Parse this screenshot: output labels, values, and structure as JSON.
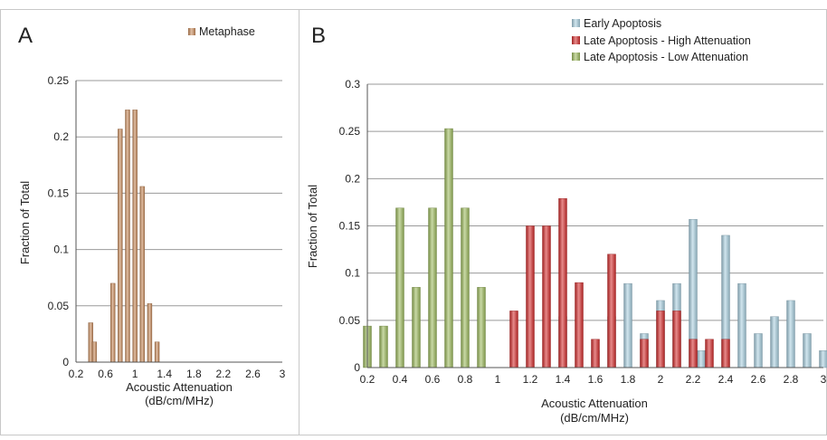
{
  "chart_data": [
    {
      "type": "bar",
      "panel_label": "A",
      "xlabel_line1": "Acoustic Attenuation",
      "xlabel_line2": "(dB/cm/MHz)",
      "ylabel": "Fraction of Total",
      "xlim": [
        0.2,
        3
      ],
      "ylim": [
        0,
        0.25
      ],
      "x_ticks": [
        "0.2",
        "0.6",
        "1",
        "1.4",
        "1.8",
        "2.2",
        "2.6",
        "3"
      ],
      "y_ticks": [
        "0",
        "0.05",
        "0.1",
        "0.15",
        "0.2",
        "0.25"
      ],
      "grid": true,
      "legend_position": "top-right",
      "series": [
        {
          "name": "Metaphase",
          "color": "#c98a5a",
          "x": [
            0.4,
            0.45,
            0.7,
            0.8,
            0.9,
            1.0,
            1.1,
            1.2,
            1.3
          ],
          "values": [
            0.035,
            0.018,
            0.07,
            0.207,
            0.224,
            0.224,
            0.156,
            0.052,
            0.018
          ]
        }
      ]
    },
    {
      "type": "bar",
      "panel_label": "B",
      "xlabel_line1": "Acoustic Attenuation",
      "xlabel_line2": "(dB/cm/MHz)",
      "ylabel": "Fraction of Total",
      "xlim": [
        0.2,
        3
      ],
      "ylim": [
        0,
        0.3
      ],
      "x_ticks": [
        "0.2",
        "0.4",
        "0.6",
        "0.8",
        "1",
        "1.2",
        "1.4",
        "1.6",
        "1.8",
        "2",
        "2.2",
        "2.4",
        "2.6",
        "2.8",
        "3"
      ],
      "y_ticks": [
        "0",
        "0.05",
        "0.1",
        "0.15",
        "0.2",
        "0.25",
        "0.3"
      ],
      "grid": true,
      "legend_position": "top",
      "series": [
        {
          "name": "Early Apoptosis",
          "color": "#a9cfe0",
          "x": [
            1.4,
            1.6,
            1.7,
            1.8,
            1.9,
            2.0,
            2.1,
            2.2,
            2.25,
            2.4,
            2.5,
            2.6,
            2.7,
            2.8,
            2.9,
            3.0
          ],
          "values": [
            0.054,
            0.018,
            0.054,
            0.089,
            0.036,
            0.071,
            0.089,
            0.157,
            0.018,
            0.14,
            0.089,
            0.036,
            0.054,
            0.071,
            0.036,
            0.018
          ]
        },
        {
          "name": "Late Apoptosis - High Attenuation",
          "color": "#d42a2a",
          "x": [
            1.1,
            1.2,
            1.3,
            1.4,
            1.5,
            1.6,
            1.7,
            1.9,
            2.0,
            2.1,
            2.2,
            2.3,
            2.4
          ],
          "values": [
            0.06,
            0.15,
            0.15,
            0.179,
            0.09,
            0.03,
            0.12,
            0.03,
            0.06,
            0.06,
            0.03,
            0.03,
            0.03
          ]
        },
        {
          "name": "Late Apoptosis - Low Attenuation",
          "color": "#9cba5c",
          "x": [
            0.2,
            0.3,
            0.4,
            0.5,
            0.6,
            0.7,
            0.8,
            0.9
          ],
          "values": [
            0.044,
            0.044,
            0.169,
            0.085,
            0.169,
            0.253,
            0.169,
            0.085
          ]
        }
      ]
    }
  ]
}
